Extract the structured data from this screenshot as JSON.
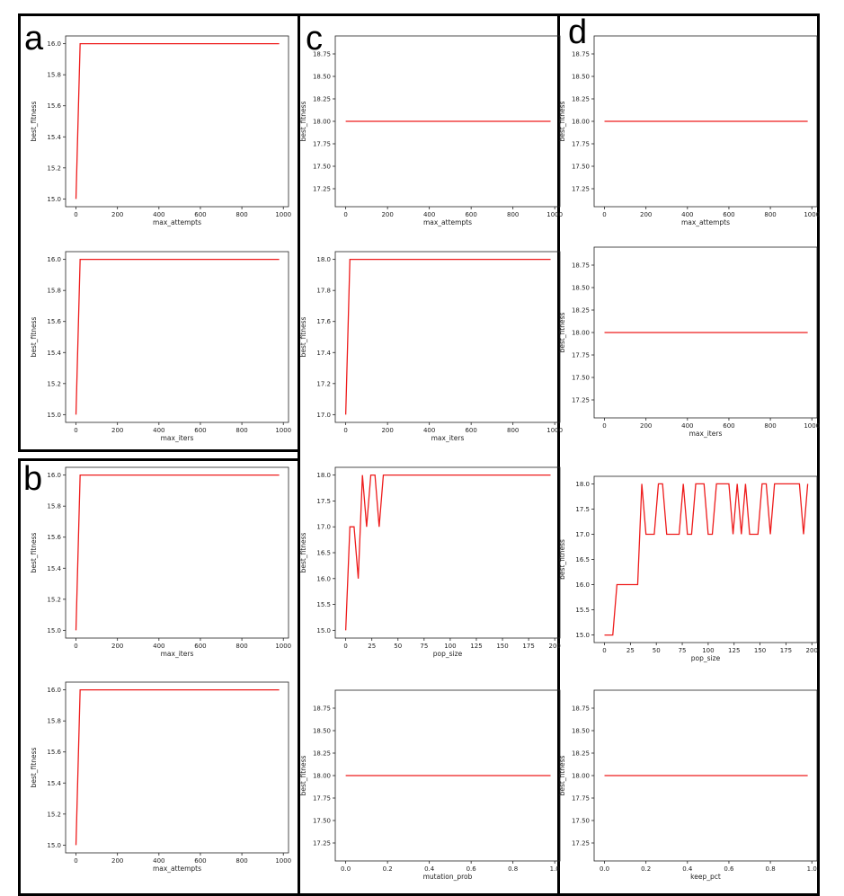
{
  "panels": [
    {
      "label": "a"
    },
    {
      "label": "b"
    },
    {
      "label": "c"
    },
    {
      "label": "d"
    }
  ],
  "colors": {
    "line": "#ee1c1c",
    "frame": "#000000",
    "axis": "#222222"
  },
  "chart_data": [
    {
      "panel": "a",
      "type": "line",
      "xlabel": "max_attempts",
      "ylabel": "best_fitness",
      "xlim": [
        -50,
        1025
      ],
      "ylim": [
        14.95,
        16.05
      ],
      "xticks": [
        "0",
        "200",
        "400",
        "600",
        "800",
        "1000"
      ],
      "xtick_values": [
        0,
        200,
        400,
        600,
        800,
        1000
      ],
      "yticks": [
        "15.0",
        "15.2",
        "15.4",
        "15.6",
        "15.8",
        "16.0"
      ],
      "ytick_values": [
        15.0,
        15.2,
        15.4,
        15.6,
        15.8,
        16.0
      ],
      "series": [
        {
          "x": [
            0,
            20,
            980
          ],
          "y": [
            15.0,
            16.0,
            16.0
          ]
        }
      ]
    },
    {
      "panel": "a",
      "type": "line",
      "xlabel": "max_iters",
      "ylabel": "best_fitness",
      "xlim": [
        -50,
        1025
      ],
      "ylim": [
        14.95,
        16.05
      ],
      "xticks": [
        "0",
        "200",
        "400",
        "600",
        "800",
        "1000"
      ],
      "xtick_values": [
        0,
        200,
        400,
        600,
        800,
        1000
      ],
      "yticks": [
        "15.0",
        "15.2",
        "15.4",
        "15.6",
        "15.8",
        "16.0"
      ],
      "ytick_values": [
        15.0,
        15.2,
        15.4,
        15.6,
        15.8,
        16.0
      ],
      "series": [
        {
          "x": [
            0,
            20,
            980
          ],
          "y": [
            15.0,
            16.0,
            16.0
          ]
        }
      ]
    },
    {
      "panel": "b",
      "type": "line",
      "xlabel": "max_iters",
      "ylabel": "best_fitness",
      "xlim": [
        -50,
        1025
      ],
      "ylim": [
        14.95,
        16.05
      ],
      "xticks": [
        "0",
        "200",
        "400",
        "600",
        "800",
        "1000"
      ],
      "xtick_values": [
        0,
        200,
        400,
        600,
        800,
        1000
      ],
      "yticks": [
        "15.0",
        "15.2",
        "15.4",
        "15.6",
        "15.8",
        "16.0"
      ],
      "ytick_values": [
        15.0,
        15.2,
        15.4,
        15.6,
        15.8,
        16.0
      ],
      "series": [
        {
          "x": [
            0,
            20,
            980
          ],
          "y": [
            15.0,
            16.0,
            16.0
          ]
        }
      ]
    },
    {
      "panel": "b",
      "type": "line",
      "xlabel": "max_attempts",
      "ylabel": "best_fitness",
      "xlim": [
        -50,
        1025
      ],
      "ylim": [
        14.95,
        16.05
      ],
      "xticks": [
        "0",
        "200",
        "400",
        "600",
        "800",
        "1000"
      ],
      "xtick_values": [
        0,
        200,
        400,
        600,
        800,
        1000
      ],
      "yticks": [
        "15.0",
        "15.2",
        "15.4",
        "15.6",
        "15.8",
        "16.0"
      ],
      "ytick_values": [
        15.0,
        15.2,
        15.4,
        15.6,
        15.8,
        16.0
      ],
      "series": [
        {
          "x": [
            0,
            20,
            980
          ],
          "y": [
            15.0,
            16.0,
            16.0
          ]
        }
      ]
    },
    {
      "panel": "c",
      "type": "line",
      "xlabel": "max_attempts",
      "ylabel": "best_fitness",
      "xlim": [
        -50,
        1025
      ],
      "ylim": [
        17.05,
        18.95
      ],
      "xticks": [
        "0",
        "200",
        "400",
        "600",
        "800",
        "1000"
      ],
      "xtick_values": [
        0,
        200,
        400,
        600,
        800,
        1000
      ],
      "yticks": [
        "17.25",
        "17.50",
        "17.75",
        "18.00",
        "18.25",
        "18.50",
        "18.75"
      ],
      "ytick_values": [
        17.25,
        17.5,
        17.75,
        18.0,
        18.25,
        18.5,
        18.75
      ],
      "series": [
        {
          "x": [
            0,
            980
          ],
          "y": [
            18.0,
            18.0
          ]
        }
      ]
    },
    {
      "panel": "c",
      "type": "line",
      "xlabel": "max_iters",
      "ylabel": "best_fitness",
      "xlim": [
        -50,
        1025
      ],
      "ylim": [
        16.95,
        18.05
      ],
      "xticks": [
        "0",
        "200",
        "400",
        "600",
        "800",
        "1000"
      ],
      "xtick_values": [
        0,
        200,
        400,
        600,
        800,
        1000
      ],
      "yticks": [
        "17.0",
        "17.2",
        "17.4",
        "17.6",
        "17.8",
        "18.0"
      ],
      "ytick_values": [
        17.0,
        17.2,
        17.4,
        17.6,
        17.8,
        18.0
      ],
      "series": [
        {
          "x": [
            0,
            20,
            980
          ],
          "y": [
            17.0,
            18.0,
            18.0
          ]
        }
      ]
    },
    {
      "panel": "c",
      "type": "line",
      "xlabel": "pop_size",
      "ylabel": "best_fitness",
      "xlim": [
        -10,
        205
      ],
      "ylim": [
        14.85,
        18.15
      ],
      "xticks": [
        "0",
        "25",
        "50",
        "75",
        "100",
        "125",
        "150",
        "175",
        "200"
      ],
      "xtick_values": [
        0,
        25,
        50,
        75,
        100,
        125,
        150,
        175,
        200
      ],
      "yticks": [
        "15.0",
        "15.5",
        "16.0",
        "16.5",
        "17.0",
        "17.5",
        "18.0"
      ],
      "ytick_values": [
        15.0,
        15.5,
        16.0,
        16.5,
        17.0,
        17.5,
        18.0
      ],
      "series": [
        {
          "x": [
            0,
            4,
            8,
            12,
            16,
            20,
            24,
            28,
            32,
            36,
            196
          ],
          "y": [
            15.0,
            17.0,
            17.0,
            16.0,
            18.0,
            17.0,
            18.0,
            18.0,
            17.0,
            18.0,
            18.0
          ]
        }
      ]
    },
    {
      "panel": "c",
      "type": "line",
      "xlabel": "mutation_prob",
      "ylabel": "best_fitness",
      "xlim": [
        -0.05,
        1.025
      ],
      "ylim": [
        17.05,
        18.95
      ],
      "xticks": [
        "0.0",
        "0.2",
        "0.4",
        "0.6",
        "0.8",
        "1.0"
      ],
      "xtick_values": [
        0.0,
        0.2,
        0.4,
        0.6,
        0.8,
        1.0
      ],
      "yticks": [
        "17.25",
        "17.50",
        "17.75",
        "18.00",
        "18.25",
        "18.50",
        "18.75"
      ],
      "ytick_values": [
        17.25,
        17.5,
        17.75,
        18.0,
        18.25,
        18.5,
        18.75
      ],
      "series": [
        {
          "x": [
            0.0,
            0.98
          ],
          "y": [
            18.0,
            18.0
          ]
        }
      ]
    },
    {
      "panel": "d",
      "type": "line",
      "xlabel": "max_attempts",
      "ylabel": "best_fitness",
      "xlim": [
        -50,
        1025
      ],
      "ylim": [
        17.05,
        18.95
      ],
      "xticks": [
        "0",
        "200",
        "400",
        "600",
        "800",
        "1000"
      ],
      "xtick_values": [
        0,
        200,
        400,
        600,
        800,
        1000
      ],
      "yticks": [
        "17.25",
        "17.50",
        "17.75",
        "18.00",
        "18.25",
        "18.50",
        "18.75"
      ],
      "ytick_values": [
        17.25,
        17.5,
        17.75,
        18.0,
        18.25,
        18.5,
        18.75
      ],
      "series": [
        {
          "x": [
            0,
            980
          ],
          "y": [
            18.0,
            18.0
          ]
        }
      ]
    },
    {
      "panel": "d",
      "type": "line",
      "xlabel": "max_iters",
      "ylabel": "best_fitness",
      "xlim": [
        -50,
        1025
      ],
      "ylim": [
        17.05,
        18.95
      ],
      "xticks": [
        "0",
        "200",
        "400",
        "600",
        "800",
        "1000"
      ],
      "xtick_values": [
        0,
        200,
        400,
        600,
        800,
        1000
      ],
      "yticks": [
        "17.25",
        "17.50",
        "17.75",
        "18.00",
        "18.25",
        "18.50",
        "18.75"
      ],
      "ytick_values": [
        17.25,
        17.5,
        17.75,
        18.0,
        18.25,
        18.5,
        18.75
      ],
      "series": [
        {
          "x": [
            0,
            980
          ],
          "y": [
            18.0,
            18.0
          ]
        }
      ]
    },
    {
      "panel": "d",
      "type": "line",
      "xlabel": "pop_size",
      "ylabel": "best_fitness",
      "xlim": [
        -10,
        205
      ],
      "ylim": [
        14.85,
        18.15
      ],
      "xticks": [
        "0",
        "25",
        "50",
        "75",
        "100",
        "125",
        "150",
        "175",
        "200"
      ],
      "xtick_values": [
        0,
        25,
        50,
        75,
        100,
        125,
        150,
        175,
        200
      ],
      "yticks": [
        "15.0",
        "15.5",
        "16.0",
        "16.5",
        "17.0",
        "17.5",
        "18.0"
      ],
      "ytick_values": [
        15.0,
        15.5,
        16.0,
        16.5,
        17.0,
        17.5,
        18.0
      ],
      "series": [
        {
          "x": [
            0,
            4,
            8,
            12,
            16,
            20,
            24,
            28,
            32,
            36,
            40,
            44,
            48,
            52,
            56,
            60,
            64,
            68,
            72,
            76,
            80,
            84,
            88,
            92,
            96,
            100,
            104,
            108,
            112,
            116,
            120,
            124,
            128,
            132,
            136,
            140,
            144,
            148,
            152,
            156,
            160,
            164,
            168,
            172,
            176,
            180,
            184,
            188,
            192,
            196
          ],
          "y": [
            15.0,
            15.0,
            15.0,
            16.0,
            16.0,
            16.0,
            16.0,
            16.0,
            16.0,
            18.0,
            17.0,
            17.0,
            17.0,
            18.0,
            18.0,
            17.0,
            17.0,
            17.0,
            17.0,
            18.0,
            17.0,
            17.0,
            18.0,
            18.0,
            18.0,
            17.0,
            17.0,
            18.0,
            18.0,
            18.0,
            18.0,
            17.0,
            18.0,
            17.0,
            18.0,
            17.0,
            17.0,
            17.0,
            18.0,
            18.0,
            17.0,
            18.0,
            18.0,
            18.0,
            18.0,
            18.0,
            18.0,
            18.0,
            17.0,
            18.0
          ]
        }
      ]
    },
    {
      "panel": "d",
      "type": "line",
      "xlabel": "keep_pct",
      "ylabel": "best_fitness",
      "xlim": [
        -0.05,
        1.025
      ],
      "ylim": [
        17.05,
        18.95
      ],
      "xticks": [
        "0.0",
        "0.2",
        "0.4",
        "0.6",
        "0.8",
        "1.0"
      ],
      "xtick_values": [
        0.0,
        0.2,
        0.4,
        0.6,
        0.8,
        1.0
      ],
      "yticks": [
        "17.25",
        "17.50",
        "17.75",
        "18.00",
        "18.25",
        "18.50",
        "18.75"
      ],
      "ytick_values": [
        17.25,
        17.5,
        17.75,
        18.0,
        18.25,
        18.5,
        18.75
      ],
      "series": [
        {
          "x": [
            0.0,
            0.98
          ],
          "y": [
            18.0,
            18.0
          ]
        }
      ]
    }
  ]
}
